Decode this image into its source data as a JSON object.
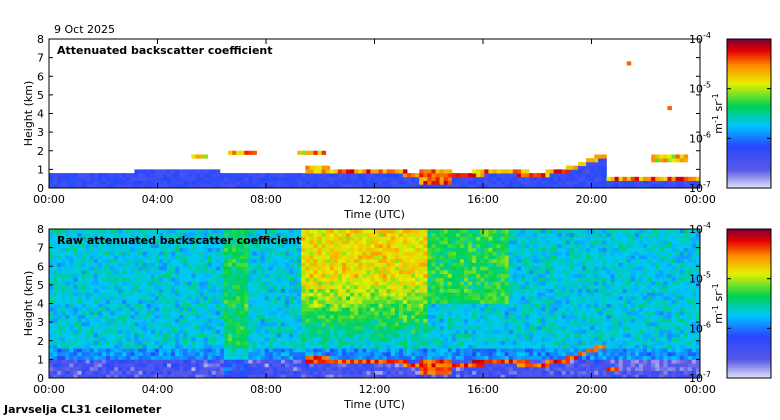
{
  "date": "9 Oct 2025",
  "footer": "Jarvselja CL31 ceilometer",
  "chart_data": [
    {
      "type": "heatmap",
      "title": "Attenuated backscatter coefficient",
      "xlabel": "Time (UTC)",
      "ylabel": "Height (km)",
      "xlim": [
        0,
        24
      ],
      "ylim": [
        0,
        8
      ],
      "x_ticks": [
        "00:00",
        "04:00",
        "08:00",
        "12:00",
        "16:00",
        "20:00",
        "00:00"
      ],
      "y_ticks": [
        "0",
        "1",
        "2",
        "3",
        "4",
        "5",
        "6",
        "7",
        "8"
      ],
      "colorbar": {
        "scale": "log",
        "range": [
          1e-07,
          0.0001
        ],
        "tick_bases": [
          "10",
          "10",
          "10",
          "10"
        ],
        "tick_exponents": [
          "-4",
          "-5",
          "-6",
          "-7"
        ],
        "unit": "m",
        "unit_sup": "-1",
        "unit2": "sr",
        "unit2_sup": "-1"
      }
    },
    {
      "type": "heatmap",
      "title": "Raw attenuated backscatter coefficient",
      "xlabel": "Time (UTC)",
      "ylabel": "Height (km)",
      "xlim": [
        0,
        24
      ],
      "ylim": [
        0,
        8
      ],
      "x_ticks": [
        "00:00",
        "04:00",
        "08:00",
        "12:00",
        "16:00",
        "20:00",
        "00:00"
      ],
      "y_ticks": [
        "0",
        "1",
        "2",
        "3",
        "4",
        "5",
        "6",
        "7",
        "8"
      ],
      "colorbar": {
        "scale": "log",
        "range": [
          1e-07,
          0.0001
        ],
        "tick_bases": [
          "10",
          "10",
          "10",
          "10"
        ],
        "tick_exponents": [
          "-4",
          "-5",
          "-6",
          "-7"
        ],
        "unit": "m",
        "unit_sup": "-1",
        "unit2": "sr",
        "unit2_sup": "-1"
      }
    }
  ],
  "colors": {
    "background": "#ffffff",
    "axis": "#000000"
  }
}
